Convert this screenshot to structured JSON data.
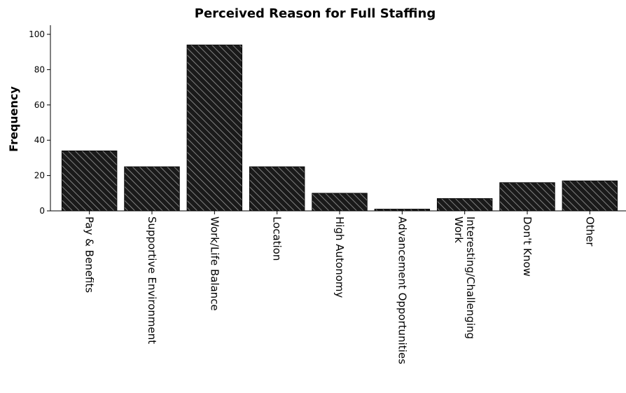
{
  "chart_data": {
    "type": "bar",
    "title": "Perceived Reason for Full Staffing",
    "xlabel": "",
    "ylabel": "Frequency",
    "ylim": [
      0,
      105
    ],
    "yticks": [
      0,
      20,
      40,
      60,
      80,
      100
    ],
    "grid": false,
    "bar_fill": "hatched",
    "bar_color": "#1a1a1a",
    "categories": [
      "Pay & Benefits",
      "Supportive Environment",
      "Work/Life Balance",
      "Location",
      "High Autonomy",
      "Advancement Opportunities",
      "Interesting/Challenging Work",
      "Don't Know",
      "Other"
    ],
    "category_lines": [
      [
        "Pay & Benefits"
      ],
      [
        "Supportive Environment"
      ],
      [
        "Work/Life Balance"
      ],
      [
        "Location"
      ],
      [
        "High Autonomy"
      ],
      [
        "Advancement Opportunities"
      ],
      [
        "Interesting/Challenging",
        "Work"
      ],
      [
        "Don't Know"
      ],
      [
        "Other"
      ]
    ],
    "values": [
      34,
      25,
      94,
      25,
      10,
      1,
      7,
      16,
      17
    ]
  }
}
